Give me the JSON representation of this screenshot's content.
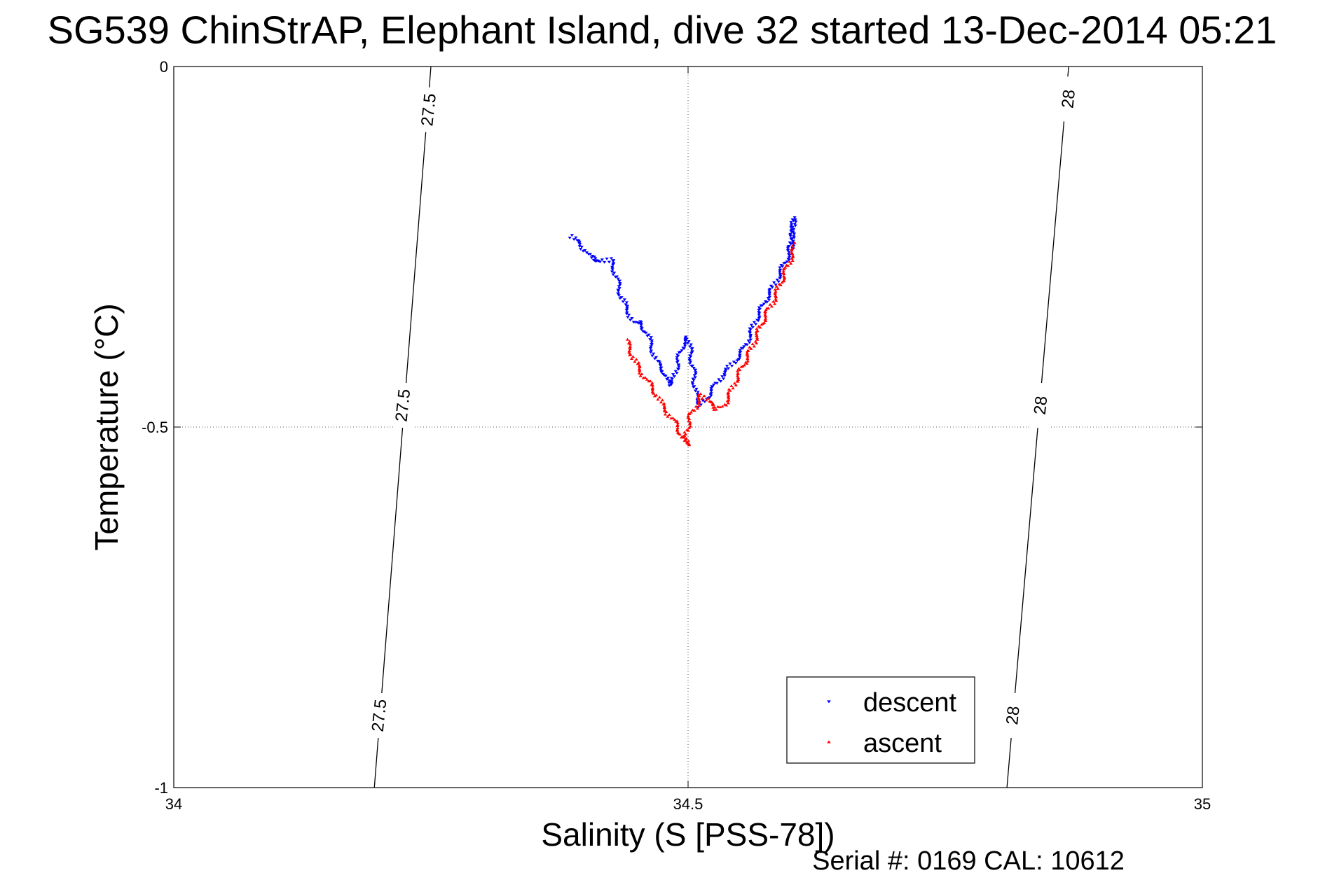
{
  "chart_data": {
    "type": "scatter",
    "title": "SG539 ChinStrAP, Elephant Island, dive 32 started 13-Dec-2014 05:21",
    "xlabel": "Salinity (S [PSS-78])",
    "ylabel": "Temperature (°C)",
    "footer": "Serial #: 0169 CAL: 10612",
    "xlim": [
      34,
      35
    ],
    "ylim": [
      -1,
      0
    ],
    "xticks": [
      34,
      34.5,
      35
    ],
    "xtick_labels": [
      "34",
      "34.5",
      "35"
    ],
    "yticks": [
      -1,
      -0.5,
      0
    ],
    "ytick_labels": [
      "-1",
      "-0.5",
      "0"
    ],
    "grid": true,
    "grid_style": "dotted",
    "legend_position": "bottom-right",
    "isopycnals": [
      {
        "label": "27.5",
        "x_at_top": 34.25,
        "x_at_bottom": 34.195,
        "label_positions": [
          {
            "x": 34.248,
            "y": -0.06
          },
          {
            "x": 34.223,
            "y": -0.47
          },
          {
            "x": 34.2,
            "y": -0.9
          }
        ]
      },
      {
        "label": "28",
        "x_at_top": 34.87,
        "x_at_bottom": 34.81,
        "label_positions": [
          {
            "x": 34.87,
            "y": -0.045
          },
          {
            "x": 34.843,
            "y": -0.47
          },
          {
            "x": 34.816,
            "y": -0.9
          }
        ]
      }
    ],
    "series": [
      {
        "name": "descent",
        "color": "#0000ff",
        "marker": "triangle-down",
        "polyline": [
          [
            34.385,
            -0.235
          ],
          [
            34.395,
            -0.245
          ],
          [
            34.405,
            -0.265
          ],
          [
            34.415,
            -0.27
          ],
          [
            34.425,
            -0.268
          ],
          [
            34.43,
            -0.29
          ],
          [
            34.435,
            -0.32
          ],
          [
            34.44,
            -0.335
          ],
          [
            34.447,
            -0.355
          ],
          [
            34.453,
            -0.355
          ],
          [
            34.46,
            -0.37
          ],
          [
            34.465,
            -0.39
          ],
          [
            34.468,
            -0.405
          ],
          [
            34.472,
            -0.415
          ],
          [
            34.476,
            -0.42
          ],
          [
            34.48,
            -0.44
          ],
          [
            34.485,
            -0.44
          ],
          [
            34.49,
            -0.41
          ],
          [
            34.495,
            -0.385
          ],
          [
            34.5,
            -0.375
          ],
          [
            34.505,
            -0.42
          ],
          [
            34.508,
            -0.46
          ],
          [
            34.512,
            -0.47
          ],
          [
            34.518,
            -0.46
          ],
          [
            34.525,
            -0.445
          ],
          [
            34.535,
            -0.425
          ],
          [
            34.545,
            -0.41
          ],
          [
            34.555,
            -0.39
          ],
          [
            34.565,
            -0.355
          ],
          [
            34.575,
            -0.325
          ],
          [
            34.585,
            -0.3
          ],
          [
            34.595,
            -0.27
          ],
          [
            34.6,
            -0.248
          ],
          [
            34.603,
            -0.21
          ],
          [
            34.6,
            -0.255
          ]
        ]
      },
      {
        "name": "ascent",
        "color": "#ff0000",
        "marker": "triangle-up",
        "polyline": [
          [
            34.44,
            -0.38
          ],
          [
            34.447,
            -0.405
          ],
          [
            34.455,
            -0.425
          ],
          [
            34.465,
            -0.445
          ],
          [
            34.473,
            -0.465
          ],
          [
            34.48,
            -0.48
          ],
          [
            34.488,
            -0.495
          ],
          [
            34.495,
            -0.515
          ],
          [
            34.5,
            -0.525
          ],
          [
            34.498,
            -0.51
          ],
          [
            34.502,
            -0.485
          ],
          [
            34.508,
            -0.47
          ],
          [
            34.513,
            -0.455
          ],
          [
            34.52,
            -0.465
          ],
          [
            34.528,
            -0.475
          ],
          [
            34.535,
            -0.47
          ],
          [
            34.545,
            -0.44
          ],
          [
            34.555,
            -0.41
          ],
          [
            34.565,
            -0.38
          ],
          [
            34.575,
            -0.345
          ],
          [
            34.583,
            -0.325
          ],
          [
            34.59,
            -0.3
          ],
          [
            34.6,
            -0.265
          ],
          [
            34.605,
            -0.245
          ]
        ]
      }
    ]
  }
}
